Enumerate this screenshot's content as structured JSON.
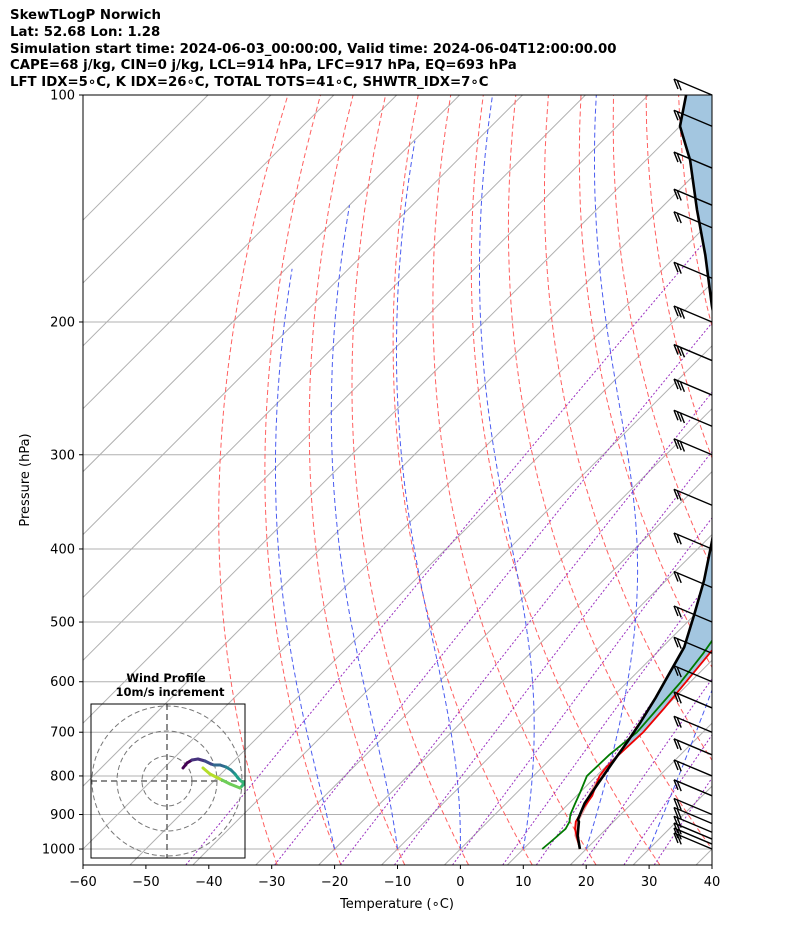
{
  "header": {
    "line1": "SkewTLogP Norwich",
    "line2": "Lat: 52.68   Lon: 1.28",
    "line3": "Simulation start time: 2024-06-03_00:00:00, Valid time: 2024-06-04T12:00:00.00",
    "line4": "CAPE=68 j/kg, CIN=0 j/kg, LCL=914 hPa, LFC=917 hPa, EQ=693 hPa",
    "line5": "LFT IDX=5∘C, K IDX=26∘C, TOTAL TOTS=41∘C, SHWTR_IDX=7∘C"
  },
  "chart_data": {
    "type": "line",
    "xlabel": "Temperature (∘C)",
    "ylabel": "Pressure (hPa)",
    "xlim": [
      -60,
      40
    ],
    "ylim": [
      1050,
      100
    ],
    "y_scale": "log",
    "skew": true,
    "grid": true,
    "x_ticks": [
      -60,
      -50,
      -40,
      -30,
      -20,
      -10,
      0,
      10,
      20,
      30,
      40
    ],
    "y_ticks": [
      100,
      200,
      300,
      400,
      500,
      600,
      700,
      800,
      900,
      1000
    ],
    "cape_fill_color": "#a3c6e0",
    "series": [
      {
        "key": "temperature",
        "color": "#ee0000",
        "points": [
          [
            19.0,
            1000
          ],
          [
            17.0,
            970
          ],
          [
            15.0,
            940
          ],
          [
            14.0,
            920
          ],
          [
            13.5,
            900
          ],
          [
            13.0,
            880
          ],
          [
            12.5,
            850
          ],
          [
            11.3,
            820
          ],
          [
            10.5,
            800
          ],
          [
            10.2,
            780
          ],
          [
            10.2,
            750
          ],
          [
            10.5,
            700
          ],
          [
            10.0,
            650
          ],
          [
            9.3,
            600
          ],
          [
            8.5,
            550
          ],
          [
            7.6,
            500
          ],
          [
            6.5,
            450
          ],
          [
            4.0,
            400
          ],
          [
            1.5,
            350
          ],
          [
            0.0,
            320
          ],
          [
            -2.0,
            300
          ],
          [
            -5.0,
            265
          ],
          [
            -7.0,
            240
          ],
          [
            -8.0,
            220
          ],
          [
            -8.3,
            200
          ],
          [
            -6.5,
            185
          ],
          [
            -1.5,
            170
          ],
          [
            3.5,
            157
          ],
          [
            7.5,
            145
          ],
          [
            10.5,
            135
          ],
          [
            12.0,
            125
          ],
          [
            13.0,
            115
          ],
          [
            12.5,
            108
          ],
          [
            12.0,
            100
          ]
        ]
      },
      {
        "key": "dewpoint",
        "color": "#007a00",
        "points": [
          [
            13.0,
            1000
          ],
          [
            13.3,
            970
          ],
          [
            13.5,
            940
          ],
          [
            13.0,
            920
          ],
          [
            12.0,
            900
          ],
          [
            11.0,
            870
          ],
          [
            10.0,
            840
          ],
          [
            8.5,
            800
          ],
          [
            8.7,
            750
          ],
          [
            9.5,
            700
          ],
          [
            9.0,
            650
          ],
          [
            8.5,
            600
          ],
          [
            7.5,
            550
          ],
          [
            6.0,
            500
          ],
          [
            3.5,
            450
          ],
          [
            0.0,
            410
          ],
          [
            -5.0,
            375
          ],
          [
            -8.5,
            360
          ],
          [
            -11.0,
            335
          ],
          [
            -10.0,
            310
          ],
          [
            -9.5,
            300
          ],
          [
            -9.0,
            270
          ],
          [
            -9.7,
            250
          ],
          [
            -11.0,
            220
          ],
          [
            -12.0,
            200
          ],
          [
            -13.0,
            180
          ],
          [
            -15.0,
            170
          ],
          [
            -18.5,
            165
          ],
          [
            -22.0,
            160
          ],
          [
            -21.5,
            155
          ],
          [
            -20.0,
            140
          ],
          [
            -16.0,
            125
          ],
          [
            -12.0,
            113
          ],
          [
            -9.0,
            105
          ],
          [
            -8.0,
            100
          ]
        ]
      },
      {
        "key": "parcel",
        "color": "#000000",
        "points": [
          [
            19.0,
            1000
          ],
          [
            16.5,
            960
          ],
          [
            14.5,
            920
          ],
          [
            14.0,
            914
          ],
          [
            12.5,
            870
          ],
          [
            11.5,
            820
          ],
          [
            10.5,
            770
          ],
          [
            9.5,
            720
          ],
          [
            8.5,
            680
          ],
          [
            7.0,
            630
          ],
          [
            5.5,
            590
          ],
          [
            3.5,
            540
          ],
          [
            0.0,
            490
          ],
          [
            -4.0,
            440
          ],
          [
            -9.0,
            390
          ],
          [
            -15.0,
            340
          ],
          [
            -22.0,
            295
          ],
          [
            -29.5,
            255
          ],
          [
            -37.5,
            220
          ],
          [
            -46.5,
            190
          ],
          [
            -55.5,
            163
          ],
          [
            -64.0,
            142
          ],
          [
            -73.0,
            122
          ],
          [
            -80.0,
            110
          ],
          [
            -84.0,
            100
          ]
        ]
      }
    ],
    "wind_barbs_pressures": [
      1000,
      985,
      970,
      950,
      925,
      900,
      850,
      800,
      750,
      700,
      650,
      600,
      550,
      500,
      450,
      400,
      350,
      300,
      275,
      250,
      225,
      200,
      175,
      150,
      140,
      125,
      110,
      100
    ],
    "hodograph": {
      "title_line1": "Wind Profile",
      "title_line2": "10m/s increment"
    }
  }
}
